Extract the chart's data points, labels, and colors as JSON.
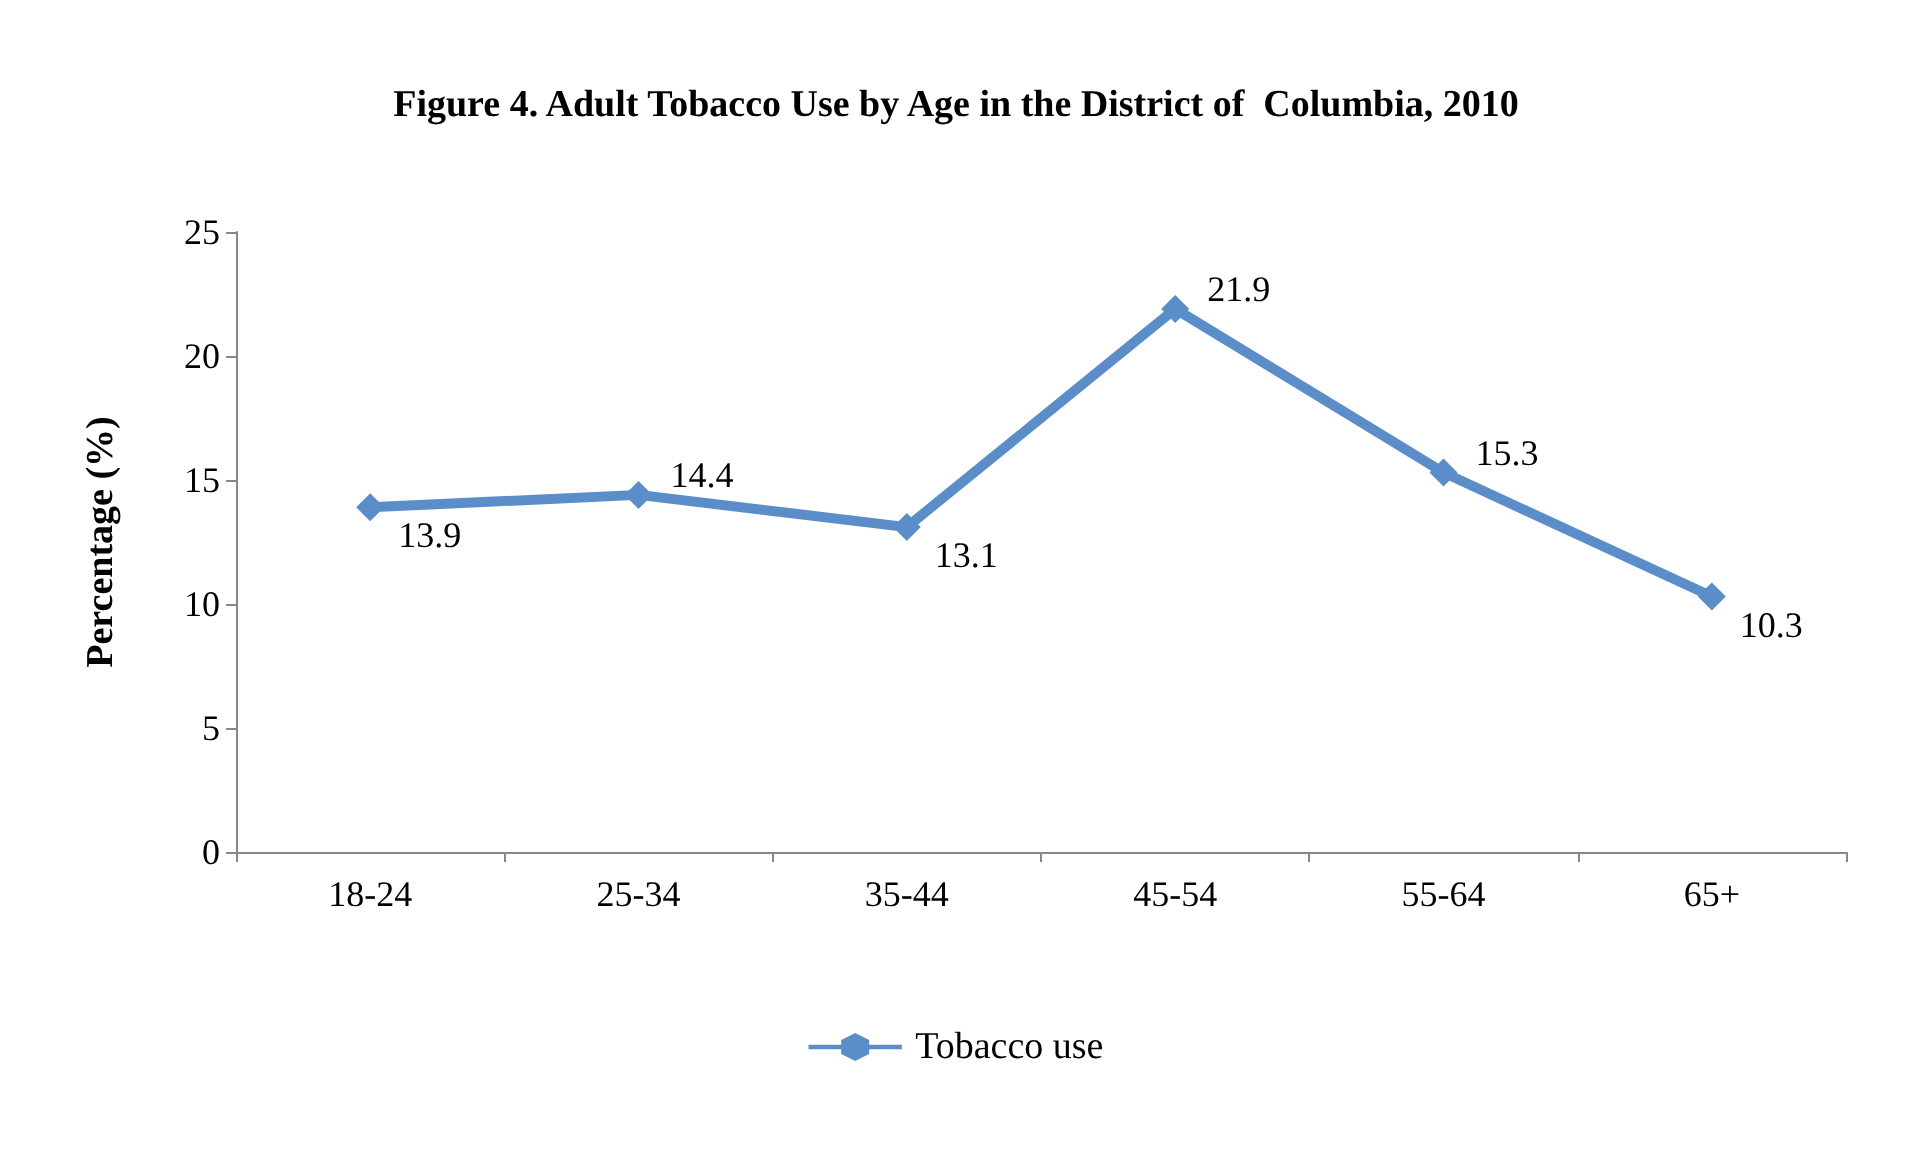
{
  "chart_data": {
    "type": "line",
    "title": "Figure 4. Adult Tobacco Use by Age in the District of  Columbia, 2010",
    "ylabel": "Percentage (%)",
    "categories": [
      "18-24",
      "25-34",
      "35-44",
      "45-54",
      "55-64",
      "65+"
    ],
    "series": [
      {
        "name": "Tobacco use",
        "color": "#5b8ec8",
        "values": [
          13.9,
          14.4,
          13.1,
          21.9,
          15.3,
          10.3
        ]
      }
    ],
    "ylim": [
      0,
      25
    ],
    "yticks": [
      0,
      5,
      10,
      15,
      20,
      25
    ],
    "grid": false,
    "legend": "bottom",
    "marker": "diamond",
    "line_style": "solid",
    "data_labels": true
  }
}
